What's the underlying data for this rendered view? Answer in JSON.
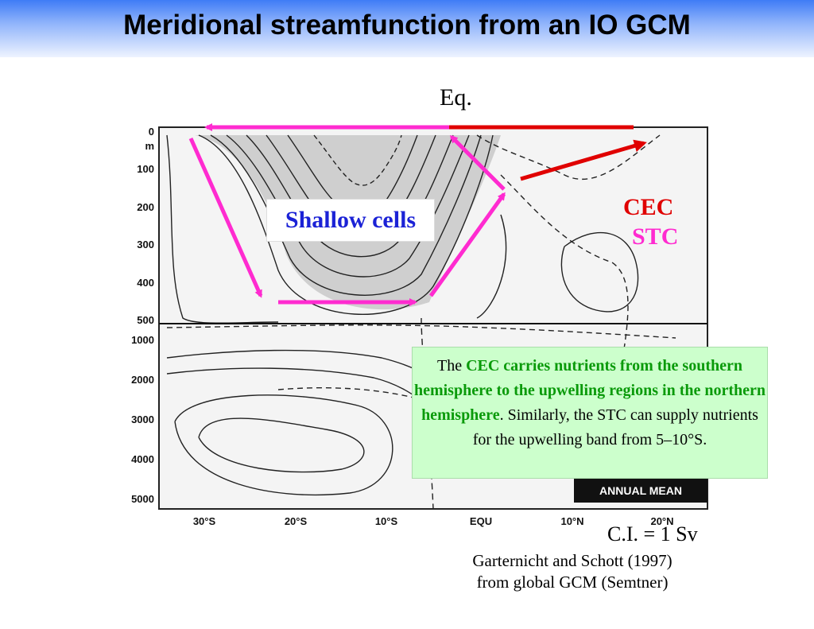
{
  "title": "Meridional streamfunction from an IO GCM",
  "eq_label": "Eq.",
  "shallow_cells_label": "Shallow cells",
  "cec_label": "CEC",
  "stc_label": "STC",
  "note": {
    "prefix": "The ",
    "highlight": "CEC carries nutrients from the southern hemisphere to the upwelling regions in the northern hemisphere",
    "period": ".",
    "rest": "Similarly, the STC can supply nutrients for the upwelling band from 5–10°S."
  },
  "ci_label": "C.I. = 1 Sv",
  "citation_line1": "Garternicht and Schott (1997)",
  "citation_line2": "from global GCM (Semtner)",
  "figure": {
    "depth_ticks": [
      "0",
      "m",
      "100",
      "200",
      "300",
      "400",
      "500",
      "1000",
      "2000",
      "3000",
      "4000",
      "5000"
    ],
    "lat_ticks": [
      "30°S",
      "20°S",
      "10°S",
      "EQU",
      "10°N",
      "20°N"
    ],
    "panel_label": "ANNUAL MEAN"
  },
  "colors": {
    "cec": "#e00000",
    "stc": "#ff2bd0",
    "shallow_text": "#1b22d6",
    "note_bg": "#ccffcc",
    "note_highlight": "#0a9a0a"
  }
}
